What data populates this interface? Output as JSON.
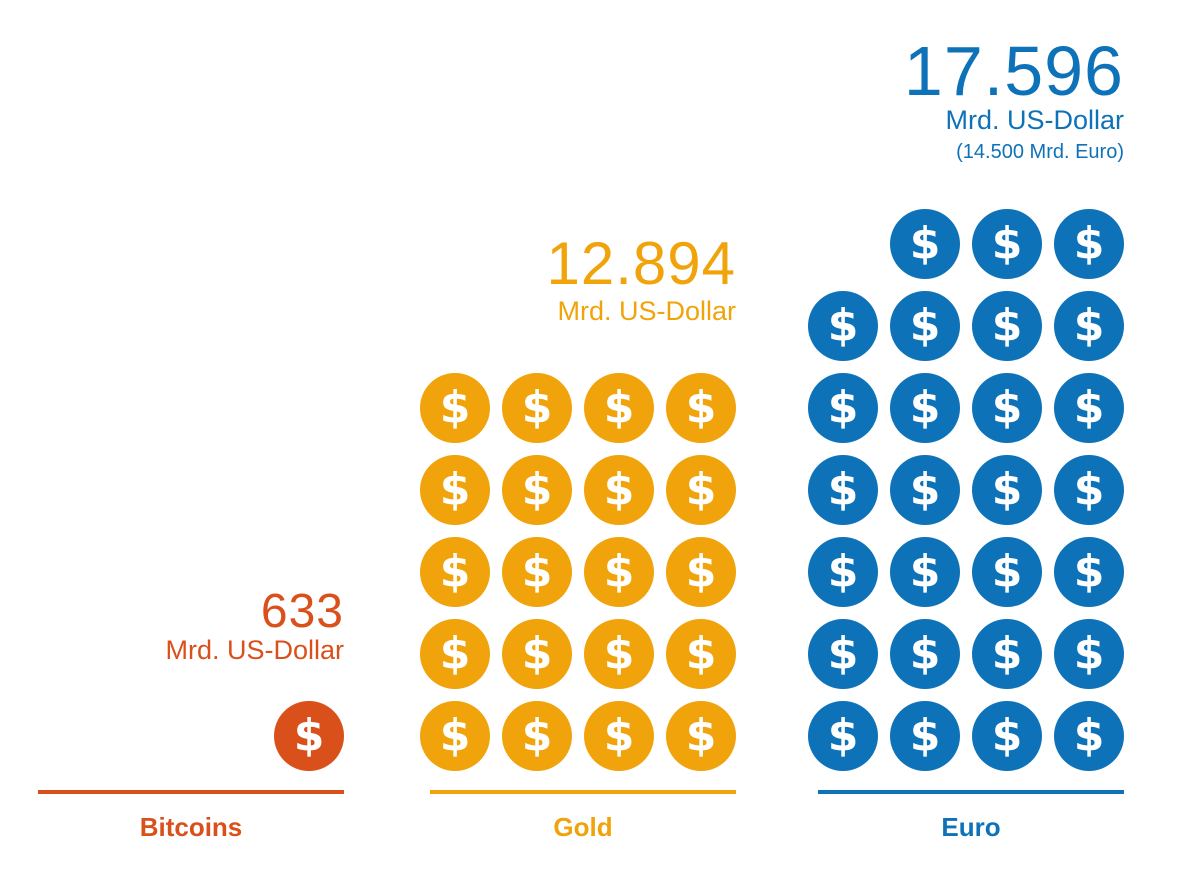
{
  "chart_data": {
    "type": "pictogram",
    "unit_note": "Mrd. US-Dollar",
    "series": [
      {
        "name": "Bitcoins",
        "value": 633,
        "value_label": "633",
        "unit": "Mrd. US-Dollar",
        "subunit": "",
        "coins": 1,
        "color": "#d9501a"
      },
      {
        "name": "Gold",
        "value": 12894,
        "value_label": "12.894",
        "unit": "Mrd. US-Dollar",
        "subunit": "",
        "coins": 20,
        "color": "#f0a30a"
      },
      {
        "name": "Euro",
        "value": 17596,
        "value_label": "17.596",
        "unit": "Mrd. US-Dollar",
        "subunit": "(14.500 Mrd. Euro)",
        "coins": 27,
        "color": "#0e72b9"
      }
    ]
  },
  "coin_symbol": "$",
  "icons": {
    "coin": "dollar-coin-icon"
  }
}
